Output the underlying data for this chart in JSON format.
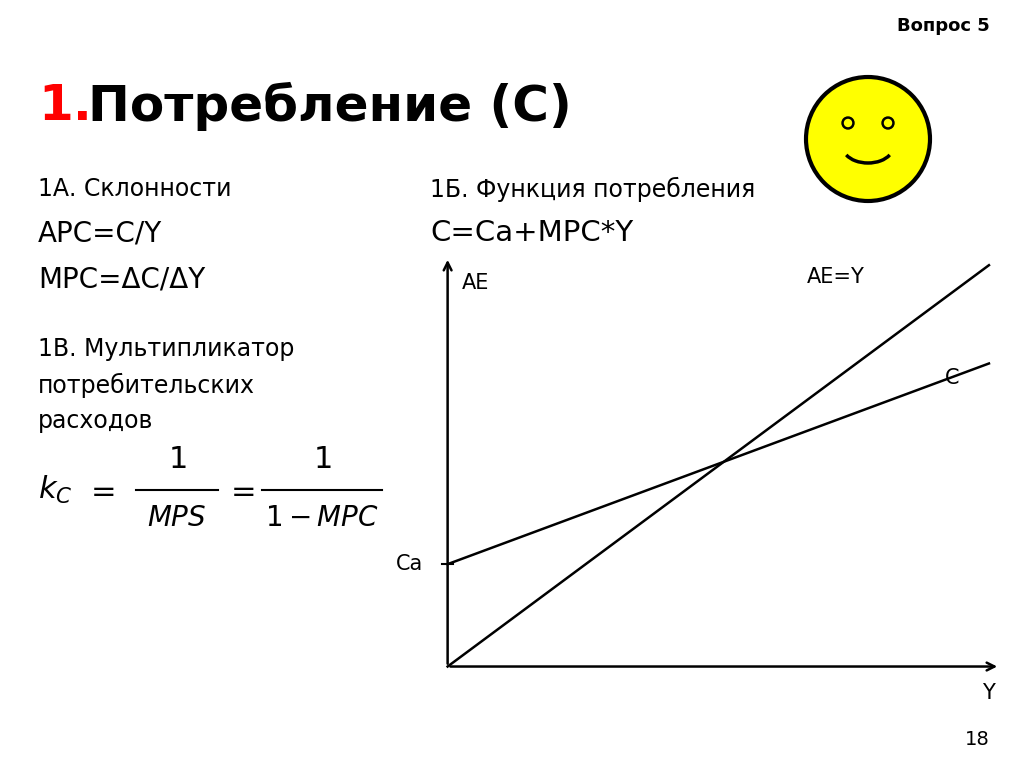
{
  "background_color": "#ffffff",
  "title_number_color": "#ff0000",
  "title_text_color": "#000000",
  "title_number": "1.",
  "title_text": "Потребление (С)",
  "title_fontsize": 36,
  "vopros_label": "Вопрос 5",
  "vopros_fontsize": 13,
  "page_number": "18",
  "section_1a_title": "1А. Склонности",
  "section_1a_line1": "АРС=С/Y",
  "section_1a_line2": "МРС=ΔС/ΔY",
  "section_1b_title": "1Б. Функция потребления",
  "section_1b_formula": "С=Са+МРС*Y",
  "section_1v_line1": "1В. Мультипликатор",
  "section_1v_line2": "потребительских",
  "section_1v_line3": "расходов",
  "graph_ae_label": "AE",
  "graph_ae_y_label": "AE=Y",
  "graph_c_label": "C",
  "graph_ca_label": "Ca",
  "graph_y_label": "Y",
  "smiley_color": "#ffff00",
  "smiley_outline": "#000000",
  "text_fontsize": 17,
  "formula_fontsize": 22,
  "graph_fontsize": 15,
  "body_font": "DejaVu Sans"
}
